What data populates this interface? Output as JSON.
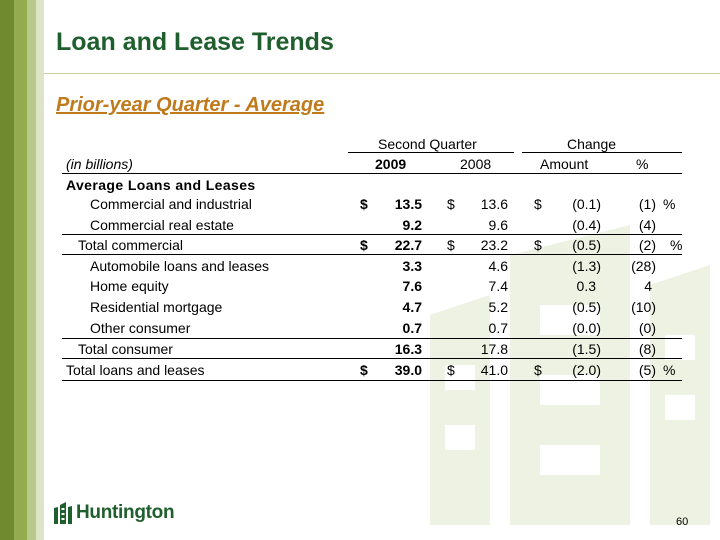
{
  "title": "Loan and Lease Trends",
  "subtitle": "Prior-year Quarter - Average",
  "table": {
    "group_headers": {
      "second_quarter": "Second Quarter",
      "change": "Change"
    },
    "units_label": "(in billions)",
    "col_headers": {
      "y2009": "2009",
      "y2008": "2008",
      "amount": "Amount",
      "pct": "%"
    },
    "section_label": "Average Loans and Leases",
    "dollar": "$",
    "percent": "%",
    "rows": [
      {
        "label": "Commercial and industrial",
        "v2009": "13.5",
        "v2008": "13.6",
        "amount": "(0.1)",
        "pct": "(1)"
      },
      {
        "label": "Commercial real estate",
        "v2009": "9.2",
        "v2008": "9.6",
        "amount": "(0.4)",
        "pct": "(4)"
      },
      {
        "label": "Total commercial",
        "v2009": "22.7",
        "v2008": "23.2",
        "amount": "(0.5)",
        "pct": "(2)"
      },
      {
        "label": "Automobile loans and leases",
        "v2009": "3.3",
        "v2008": "4.6",
        "amount": "(1.3)",
        "pct": "(28)"
      },
      {
        "label": "Home equity",
        "v2009": "7.6",
        "v2008": "7.4",
        "amount": "0.3",
        "pct": "4"
      },
      {
        "label": "Residential mortgage",
        "v2009": "4.7",
        "v2008": "5.2",
        "amount": "(0.5)",
        "pct": "(10)"
      },
      {
        "label": "Other consumer",
        "v2009": "0.7",
        "v2008": "0.7",
        "amount": "(0.0)",
        "pct": "(0)"
      },
      {
        "label": "Total consumer",
        "v2009": "16.3",
        "v2008": "17.8",
        "amount": "(1.5)",
        "pct": "(8)"
      },
      {
        "label": "Total loans and leases",
        "v2009": "39.0",
        "v2008": "41.0",
        "amount": "(2.0)",
        "pct": "(5)"
      }
    ]
  },
  "logo_text": "Huntington",
  "page_number": "60",
  "colors": {
    "title": "#1f5e2d",
    "subtitle": "#c07a1c",
    "watermark": "#eef2e2"
  }
}
